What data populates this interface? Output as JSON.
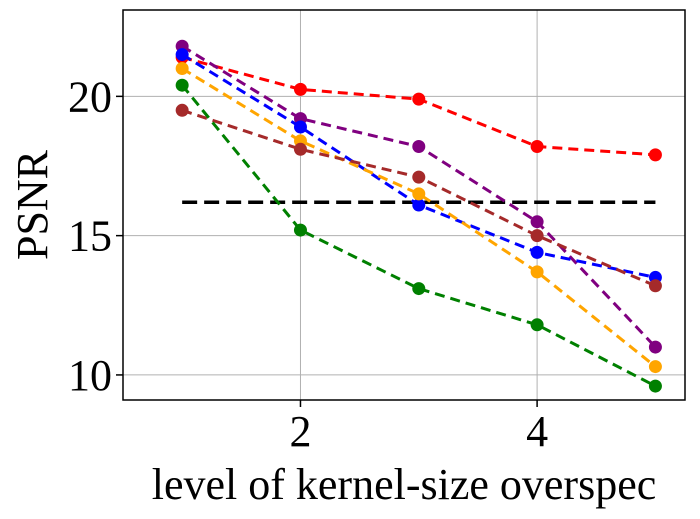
{
  "chart_data": {
    "type": "line",
    "title": "",
    "xlabel": "level of kernel-size overspec",
    "ylabel": "PSNR",
    "xlim": [
      0.5,
      5.25
    ],
    "ylim": [
      9.1,
      23.1
    ],
    "xticks": [
      2,
      4
    ],
    "yticks": [
      10,
      15,
      20
    ],
    "grid": true,
    "x": [
      1,
      2,
      3,
      4,
      5
    ],
    "series": [
      {
        "name": "red",
        "color": "#ff0000",
        "values": [
          21.4,
          20.25,
          19.9,
          18.2,
          17.9
        ]
      },
      {
        "name": "purple",
        "color": "#800080",
        "values": [
          21.8,
          19.2,
          18.2,
          15.5,
          11.0
        ]
      },
      {
        "name": "blue",
        "color": "#0000ff",
        "values": [
          21.5,
          18.9,
          16.1,
          14.4,
          13.5
        ]
      },
      {
        "name": "orange",
        "color": "#ffa500",
        "values": [
          21.0,
          18.4,
          16.5,
          13.7,
          10.3
        ]
      },
      {
        "name": "brown",
        "color": "#a52a2a",
        "values": [
          19.5,
          18.1,
          17.1,
          15.0,
          13.2
        ]
      },
      {
        "name": "green",
        "color": "#008000",
        "values": [
          20.4,
          15.2,
          13.1,
          11.8,
          9.6
        ]
      }
    ],
    "reference_line": {
      "name": "baseline",
      "color": "#000000",
      "value": 16.2,
      "x_range": [
        1,
        5
      ]
    }
  }
}
